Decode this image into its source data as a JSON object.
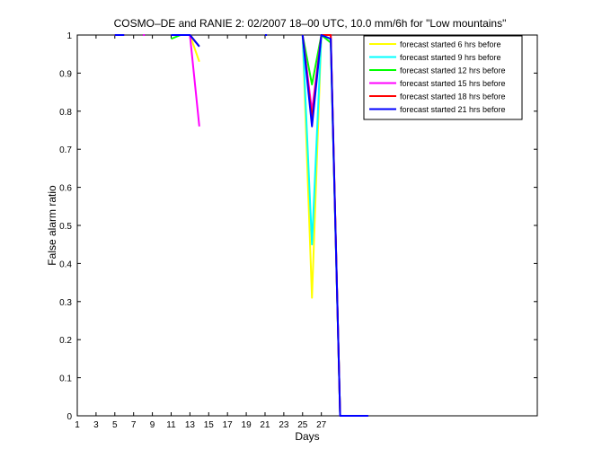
{
  "chart_data": {
    "type": "line",
    "title": "COSMO–DE and RANIE 2: 02/2007 18–00 UTC, 10.0 mm/6h for \"Low mountains\"",
    "xlabel": "Days",
    "ylabel": "False alarm ratio",
    "xlim": [
      1,
      50
    ],
    "ylim": [
      0,
      1
    ],
    "xticks": [
      "1",
      "3",
      "5",
      "7",
      "9",
      "11",
      "13",
      "15",
      "17",
      "19",
      "21",
      "23",
      "25",
      "27"
    ],
    "yticks": [
      "0",
      "0.1",
      "0.2",
      "0.3",
      "0.4",
      "0.5",
      "0.6",
      "0.7",
      "0.8",
      "0.9",
      "1"
    ],
    "legend_position": "top-right",
    "series": [
      {
        "name": "forecast started 6 hrs before",
        "color": "#ffff00",
        "segments": [
          [
            [
              5,
              1
            ],
            [
              6,
              1
            ]
          ],
          [
            [
              11,
              1
            ],
            [
              12,
              1
            ],
            [
              13,
              1
            ],
            [
              14,
              0.93
            ]
          ],
          [
            [
              25,
              1
            ],
            [
              26,
              0.31
            ],
            [
              27,
              1
            ],
            [
              28,
              0.99
            ],
            [
              29,
              0
            ],
            [
              30,
              0
            ],
            [
              31,
              0
            ],
            [
              32,
              0
            ]
          ]
        ]
      },
      {
        "name": "forecast started 9 hrs before",
        "color": "#00ffff",
        "segments": [
          [
            [
              5,
              1
            ],
            [
              6,
              1
            ]
          ],
          [
            [
              11,
              1
            ],
            [
              12,
              1
            ],
            [
              13,
              1
            ],
            [
              14,
              0.97
            ]
          ],
          [
            [
              25,
              1
            ],
            [
              26,
              0.45
            ],
            [
              27,
              1
            ],
            [
              28,
              0.99
            ],
            [
              29,
              0
            ],
            [
              30,
              0
            ],
            [
              31,
              0
            ],
            [
              32,
              0
            ]
          ]
        ]
      },
      {
        "name": "forecast started 12 hrs before",
        "color": "#00ff00",
        "segments": [
          [
            [
              5,
              1
            ],
            [
              6,
              1
            ]
          ],
          [
            [
              11,
              0.99
            ],
            [
              12,
              1
            ],
            [
              13,
              1
            ],
            [
              14,
              0.97
            ]
          ],
          [
            [
              25,
              1
            ],
            [
              26,
              0.87
            ],
            [
              27,
              1
            ],
            [
              28,
              0.98
            ],
            [
              29,
              0
            ],
            [
              30,
              0
            ],
            [
              31,
              0
            ],
            [
              32,
              0
            ]
          ]
        ]
      },
      {
        "name": "forecast started 15 hrs before",
        "color": "#ff00ff",
        "segments": [
          [
            [
              5,
              1
            ],
            [
              6,
              1
            ]
          ],
          [
            [
              8,
              1
            ],
            [
              8.2,
              1
            ]
          ],
          [
            [
              11,
              1
            ],
            [
              12,
              1
            ],
            [
              13,
              1
            ],
            [
              14,
              0.76
            ]
          ],
          [
            [
              25,
              1
            ],
            [
              26,
              0.8
            ],
            [
              27,
              1
            ],
            [
              28,
              1
            ],
            [
              29,
              0
            ],
            [
              30,
              0
            ],
            [
              31,
              0
            ],
            [
              32,
              0
            ]
          ]
        ]
      },
      {
        "name": "forecast started 18 hrs before",
        "color": "#ff0000",
        "segments": [
          [
            [
              5,
              1
            ],
            [
              6,
              1
            ]
          ],
          [
            [
              11,
              1
            ],
            [
              12,
              1
            ],
            [
              13,
              1
            ],
            [
              14,
              0.97
            ]
          ],
          [
            [
              25,
              1
            ],
            [
              26,
              0.78
            ],
            [
              27,
              1
            ],
            [
              28,
              1
            ],
            [
              29,
              0
            ],
            [
              30,
              0
            ],
            [
              31,
              0
            ],
            [
              32,
              0
            ]
          ]
        ]
      },
      {
        "name": "forecast started 21 hrs before",
        "color": "#0000ff",
        "segments": [
          [
            [
              5,
              1
            ],
            [
              6,
              1
            ]
          ],
          [
            [
              11,
              1
            ],
            [
              12,
              1
            ],
            [
              13,
              1
            ],
            [
              14,
              0.97
            ]
          ],
          [
            [
              21,
              1
            ],
            [
              21.2,
              1
            ]
          ],
          [
            [
              25,
              1
            ],
            [
              26,
              0.76
            ],
            [
              27,
              1
            ],
            [
              28,
              0.99
            ],
            [
              29,
              0
            ],
            [
              30,
              0
            ],
            [
              31,
              0
            ],
            [
              32,
              0
            ]
          ]
        ]
      }
    ]
  }
}
